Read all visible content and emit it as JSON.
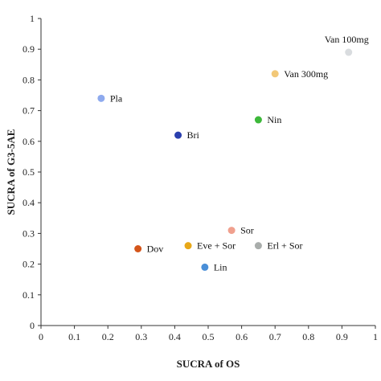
{
  "chart_data": {
    "type": "scatter",
    "title": "",
    "xlabel": "SUCRA of OS",
    "ylabel": "SUCRA of G3-5AE",
    "xlim": [
      0,
      1
    ],
    "ylim": [
      0,
      1
    ],
    "x_ticks": [
      "0",
      "0.1",
      "0.2",
      "0.3",
      "0.4",
      "0.5",
      "0.6",
      "0.7",
      "0.8",
      "0.9",
      "1"
    ],
    "y_ticks": [
      "0",
      "0.1",
      "0.2",
      "0.3",
      "0.4",
      "0.5",
      "0.6",
      "0.7",
      "0.8",
      "0.9",
      "1"
    ],
    "grid": false,
    "points": [
      {
        "label": "Van 100mg",
        "x": 0.92,
        "y": 0.89,
        "color": "#d9dcdf"
      },
      {
        "label": "Van 300mg",
        "x": 0.7,
        "y": 0.82,
        "color": "#f2c878"
      },
      {
        "label": "Pla",
        "x": 0.18,
        "y": 0.74,
        "color": "#8eaaee"
      },
      {
        "label": "Nin",
        "x": 0.65,
        "y": 0.67,
        "color": "#3db83a"
      },
      {
        "label": "Bri",
        "x": 0.41,
        "y": 0.62,
        "color": "#2a3fae"
      },
      {
        "label": "Sor",
        "x": 0.57,
        "y": 0.31,
        "color": "#f0a08e"
      },
      {
        "label": "Dov",
        "x": 0.29,
        "y": 0.25,
        "color": "#d4551a"
      },
      {
        "label": "Eve + Sor",
        "x": 0.44,
        "y": 0.26,
        "color": "#e8a818"
      },
      {
        "label": "Erl + Sor",
        "x": 0.65,
        "y": 0.26,
        "color": "#a9adab"
      },
      {
        "label": "Lin",
        "x": 0.49,
        "y": 0.19,
        "color": "#4a8fd8"
      }
    ]
  }
}
